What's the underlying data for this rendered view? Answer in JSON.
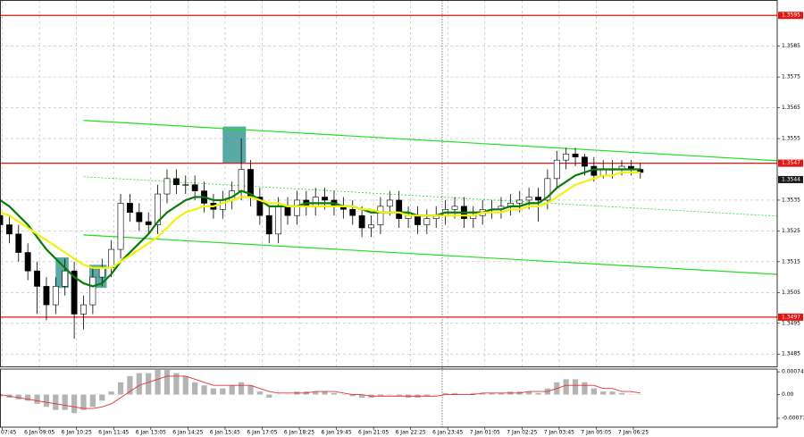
{
  "chart_data": [
    {
      "type": "candlestick",
      "x": [
        0,
        4,
        8,
        12,
        16,
        20,
        24,
        28,
        32,
        36,
        40,
        44,
        48,
        52,
        56,
        60,
        64,
        68,
        72,
        76,
        80,
        84,
        88,
        92,
        96,
        100,
        104,
        108,
        112,
        116,
        120,
        124,
        128,
        132,
        136,
        140,
        144,
        148,
        152,
        156,
        160,
        164,
        168,
        172,
        176,
        180,
        184,
        188,
        192,
        196,
        200,
        204,
        208,
        212,
        216,
        220,
        224,
        228,
        232,
        236,
        240,
        244,
        248,
        252,
        256,
        260,
        264,
        268,
        272,
        276
      ],
      "open": [
        1.353,
        1.3527,
        1.3524,
        1.3518,
        1.3512,
        1.3507,
        1.3501,
        1.3507,
        1.3512,
        1.3498,
        1.3501,
        1.351,
        1.3513,
        1.3519,
        1.3534,
        1.3531,
        1.3528,
        1.3527,
        1.3537,
        1.3542,
        1.354,
        1.354,
        1.3538,
        1.3534,
        1.3532,
        1.3535,
        1.3538,
        1.3545,
        1.3536,
        1.353,
        1.3524,
        1.3533,
        1.353,
        1.3535,
        1.3533,
        1.3536,
        1.3535,
        1.3533,
        1.3532,
        1.353,
        1.3526,
        1.3527,
        1.3533,
        1.3535,
        1.3529,
        1.353,
        1.3527,
        1.3529,
        1.353,
        1.3532,
        1.3533,
        1.3529,
        1.353,
        1.3532,
        1.3532,
        1.3533,
        1.3534,
        1.3535,
        1.3536,
        1.3535,
        1.3542,
        1.3548,
        1.355,
        1.3549,
        1.3546,
        1.3543,
        1.3545,
        1.3545,
        1.3546,
        1.3545
      ],
      "high": [
        1.3533,
        1.353,
        1.3527,
        1.3521,
        1.3515,
        1.351,
        1.351,
        1.3516,
        1.3515,
        1.3504,
        1.3513,
        1.3516,
        1.3522,
        1.3537,
        1.3537,
        1.3534,
        1.3531,
        1.354,
        1.3545,
        1.3545,
        1.3543,
        1.3543,
        1.3541,
        1.3537,
        1.3538,
        1.3541,
        1.3555,
        1.3548,
        1.3539,
        1.3533,
        1.3536,
        1.3536,
        1.3538,
        1.3538,
        1.3539,
        1.3539,
        1.3538,
        1.3536,
        1.3535,
        1.3533,
        1.353,
        1.3536,
        1.3538,
        1.3538,
        1.3533,
        1.3533,
        1.3532,
        1.3533,
        1.3535,
        1.3536,
        1.3536,
        1.3533,
        1.3535,
        1.3535,
        1.3536,
        1.3537,
        1.3538,
        1.3539,
        1.3539,
        1.3545,
        1.3551,
        1.3552,
        1.3552,
        1.355,
        1.3549,
        1.3548,
        1.3548,
        1.3548,
        1.3548,
        1.3547
      ],
      "low": [
        1.3524,
        1.3521,
        1.3515,
        1.3509,
        1.3498,
        1.3496,
        1.3498,
        1.3504,
        1.349,
        1.3493,
        1.3498,
        1.3507,
        1.351,
        1.3516,
        1.3528,
        1.3525,
        1.3524,
        1.3524,
        1.3534,
        1.3537,
        1.3537,
        1.3535,
        1.3531,
        1.3529,
        1.3529,
        1.3532,
        1.3535,
        1.3533,
        1.3527,
        1.3521,
        1.3521,
        1.3527,
        1.3527,
        1.353,
        1.353,
        1.3532,
        1.353,
        1.3529,
        1.3527,
        1.3523,
        1.3523,
        1.3524,
        1.353,
        1.3526,
        1.3526,
        1.3524,
        1.3524,
        1.3526,
        1.3527,
        1.3529,
        1.3526,
        1.3526,
        1.3527,
        1.3529,
        1.3529,
        1.353,
        1.3531,
        1.3532,
        1.3528,
        1.3532,
        1.3539,
        1.3545,
        1.3546,
        1.3543,
        1.3541,
        1.3542,
        1.3542,
        1.3543,
        1.3543,
        1.3542
      ],
      "close": [
        1.3527,
        1.3524,
        1.3518,
        1.3512,
        1.3507,
        1.3501,
        1.3507,
        1.3512,
        1.3498,
        1.3501,
        1.351,
        1.3513,
        1.3519,
        1.3534,
        1.3531,
        1.3528,
        1.3527,
        1.3537,
        1.3542,
        1.354,
        1.354,
        1.3538,
        1.3534,
        1.3532,
        1.3535,
        1.3538,
        1.3545,
        1.3536,
        1.353,
        1.3524,
        1.3533,
        1.353,
        1.3535,
        1.3533,
        1.3536,
        1.3535,
        1.3533,
        1.3532,
        1.353,
        1.3526,
        1.3527,
        1.3533,
        1.3535,
        1.3529,
        1.353,
        1.3527,
        1.3529,
        1.353,
        1.3532,
        1.3533,
        1.3529,
        1.353,
        1.3532,
        1.3532,
        1.3533,
        1.3534,
        1.3535,
        1.3536,
        1.3535,
        1.3542,
        1.3548,
        1.355,
        1.3549,
        1.3546,
        1.3543,
        1.3545,
        1.3545,
        1.3546,
        1.3545,
        1.3544
      ],
      "up_color": "#ffffff",
      "down_color": "#000000",
      "wick_color": "#000000",
      "series": [
        {
          "color": "#0a7a0a",
          "values": [
            1.3535,
            1.3533,
            1.353,
            1.3527,
            1.3523,
            1.3519,
            1.3516,
            1.3513,
            1.351,
            1.3508,
            1.3507,
            1.3508,
            1.3511,
            1.3515,
            1.3518,
            1.3521,
            1.3524,
            1.3528,
            1.3531,
            1.3533,
            1.3535,
            1.3536,
            1.3536,
            1.3535,
            1.3535,
            1.3536,
            1.3538,
            1.3537,
            1.3535,
            1.3533,
            1.3533,
            1.3533,
            1.3533,
            1.3534,
            1.3534,
            1.3534,
            1.3534,
            1.3533,
            1.3533,
            1.3532,
            1.3531,
            1.3531,
            1.3531,
            1.3531,
            1.3531,
            1.353,
            1.353,
            1.353,
            1.3531,
            1.3531,
            1.3531,
            1.3531,
            1.3531,
            1.3532,
            1.3532,
            1.3533,
            1.3533,
            1.3534,
            1.3534,
            1.3536,
            1.3539,
            1.3541,
            1.3543,
            1.3544,
            1.3545,
            1.3545,
            1.3545,
            1.3545,
            1.3545,
            1.3545
          ]
        },
        {
          "color": "#f2f20a",
          "values": [
            1.3531,
            1.353,
            1.3528,
            1.3526,
            1.3524,
            1.3522,
            1.352,
            1.3518,
            1.3516,
            1.3514,
            1.3513,
            1.3513,
            1.3513,
            1.3515,
            1.3517,
            1.3519,
            1.3521,
            1.3523,
            1.3526,
            1.3529,
            1.3531,
            1.3532,
            1.3533,
            1.3533,
            1.3534,
            1.3535,
            1.3536,
            1.3536,
            1.3535,
            1.3534,
            1.3534,
            1.3533,
            1.3533,
            1.3533,
            1.3533,
            1.3533,
            1.3533,
            1.3533,
            1.3533,
            1.3532,
            1.3532,
            1.3531,
            1.3531,
            1.3531,
            1.353,
            1.353,
            1.353,
            1.353,
            1.353,
            1.353,
            1.353,
            1.353,
            1.3531,
            1.3531,
            1.3531,
            1.3532,
            1.3532,
            1.3533,
            1.3533,
            1.3534,
            1.3536,
            1.3538,
            1.354,
            1.3541,
            1.3542,
            1.3543,
            1.3543,
            1.3544,
            1.3544,
            1.3544
          ]
        }
      ],
      "xlim": [
        0,
        335
      ],
      "ylim": [
        1.3481,
        1.36
      ],
      "yticks": [
        1.3485,
        1.3495,
        1.3505,
        1.3515,
        1.3525,
        1.3535,
        1.3555,
        1.3565,
        1.3575,
        1.3585
      ],
      "xticks": [
        {
          "value": 1,
          "label": "07:45"
        },
        {
          "value": 17,
          "label": "6 Jan 09:05"
        },
        {
          "value": 33,
          "label": "6 Jan 10:25"
        },
        {
          "value": 49,
          "label": "6 Jan 11:45"
        },
        {
          "value": 65,
          "label": "6 Jan 13:05"
        },
        {
          "value": 81,
          "label": "6 Jan 14:25"
        },
        {
          "value": 97,
          "label": "6 Jan 15:45"
        },
        {
          "value": 113,
          "label": "6 Jan 17:05"
        },
        {
          "value": 129,
          "label": "6 Jan 18:25"
        },
        {
          "value": 145,
          "label": "6 Jan 19:45"
        },
        {
          "value": 161,
          "label": "6 Jan 21:05"
        },
        {
          "value": 177,
          "label": "6 Jan 22:25"
        },
        {
          "value": 193,
          "label": "6 Jan 23:45"
        },
        {
          "value": 209,
          "label": "7 Jan 01:05"
        },
        {
          "value": 225,
          "label": "7 Jan 02:25"
        },
        {
          "value": 241,
          "label": "7 Jan 03:45"
        },
        {
          "value": 257,
          "label": "7 Jan 05:05"
        },
        {
          "value": 273,
          "label": "7 Jan 06:25"
        }
      ],
      "grid": true,
      "levels": [
        1.3595,
        1.3547,
        1.3497
      ],
      "level_color": "#e8130f",
      "trendlines": [
        {
          "x": [
            36,
            335
          ],
          "y": [
            1.35609,
            1.35478
          ],
          "style": "solid"
        },
        {
          "x": [
            36,
            335
          ],
          "y": [
            1.35426,
            1.35298
          ],
          "style": "dotted"
        },
        {
          "x": [
            36,
            335
          ],
          "y": [
            1.35237,
            1.35109
          ],
          "style": "solid"
        }
      ],
      "trendline_color": "#22e022",
      "zones": [
        {
          "x": [
            24,
            29.6
          ],
          "y": [
            1.35065,
            1.35164
          ]
        },
        {
          "x": [
            38.5,
            46
          ],
          "y": [
            1.35065,
            1.3514
          ]
        },
        {
          "x": [
            96,
            106
          ],
          "y": [
            1.3547,
            1.35589
          ]
        }
      ],
      "zone_color": "#3d9a94"
    },
    {
      "type": "macd",
      "values": [
        -5e-05,
        -0.0001,
        -0.00015,
        -0.0002,
        -0.0003,
        -0.0004,
        -0.0005,
        -0.0005,
        -0.0006,
        -0.0005,
        -0.0004,
        -0.0002,
        0.0001,
        0.0004,
        0.0006,
        0.0007,
        0.0007,
        0.0008,
        0.0008,
        0.0007,
        0.0006,
        0.0004,
        0.0003,
        0.0002,
        0.0002,
        0.0003,
        0.0004,
        0.0003,
        0.0001,
        -0.0001,
        0,
        0,
        0.0001,
        0.0001,
        0.0001,
        0.0001,
        5e-05,
        0,
        -5e-05,
        -0.0001,
        -0.0001,
        -5e-05,
        0,
        -5e-05,
        -0.0001,
        -0.0001,
        -5e-05,
        0,
        5e-05,
        5e-05,
        0,
        5e-05,
        5e-05,
        5e-05,
        5e-05,
        0.0001,
        0.0001,
        0.0001,
        5e-05,
        0.0002,
        0.0004,
        0.0005,
        0.0005,
        0.0004,
        0.0002,
        0.0001,
        0.0001,
        5e-05,
        0,
        0
      ],
      "color": "#b4b4b4",
      "signal": {
        "color": "#e83030",
        "values": [
          0,
          -5e-05,
          -0.0001,
          -0.00015,
          -0.0002,
          -0.00025,
          -0.0003,
          -0.00035,
          -0.0004,
          -0.00045,
          -0.00045,
          -0.0004,
          -0.0003,
          -0.0001,
          0.0001,
          0.0003,
          0.0004,
          0.0005,
          0.0006,
          0.0006,
          0.0006,
          0.0005,
          0.0004,
          0.0003,
          0.0003,
          0.0003,
          0.0003,
          0.0003,
          0.0002,
          0.0001,
          5e-05,
          5e-05,
          5e-05,
          5e-05,
          0.0001,
          0.0001,
          0.0001,
          5e-05,
          0,
          0,
          -5e-05,
          -5e-05,
          -5e-05,
          -5e-05,
          -5e-05,
          -5e-05,
          -5e-05,
          -5e-05,
          0,
          0,
          0,
          0,
          5e-05,
          5e-05,
          5e-05,
          5e-05,
          5e-05,
          0.0001,
          0.0001,
          0.0001,
          0.0002,
          0.0003,
          0.0003,
          0.0003,
          0.0003,
          0.0002,
          0.0002,
          0.0001,
          0.0001,
          5e-05
        ]
      },
      "ylim": [
        -0.00106,
        0.00083
      ],
      "yticks": [
        0.00074,
        {
          "value": 0,
          "label": "0.00"
        },
        -0.00077
      ]
    }
  ]
}
